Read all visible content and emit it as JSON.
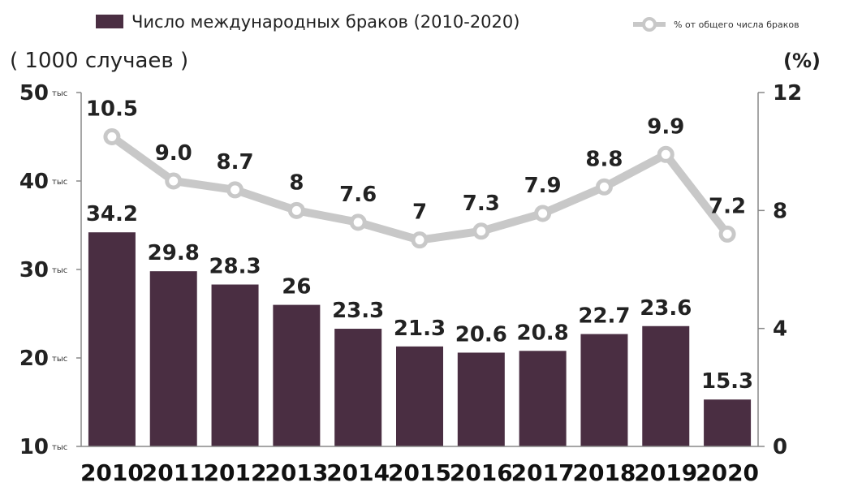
{
  "chart_data": {
    "type": "bar",
    "categories": [
      "2010",
      "2011",
      "2012",
      "2013",
      "2014",
      "2015",
      "2016",
      "2017",
      "2018",
      "2019",
      "2020"
    ],
    "series": [
      {
        "name": "Число международных браков (2010-2020)",
        "type": "bar",
        "axis": "left",
        "values": [
          34.2,
          29.8,
          28.3,
          26,
          23.3,
          21.3,
          20.6,
          20.8,
          22.7,
          23.6,
          15.3
        ],
        "labels": [
          "34.2",
          "29.8",
          "28.3",
          "26",
          "23.3",
          "21.3",
          "20.6",
          "20.8",
          "22.7",
          "23.6",
          "15.3"
        ],
        "color": "#4a2e42"
      },
      {
        "name": "% от общего числа браков",
        "type": "line",
        "axis": "right",
        "values": [
          10.5,
          9.0,
          8.7,
          8,
          7.6,
          7,
          7.3,
          7.9,
          8.8,
          9.9,
          7.2
        ],
        "labels": [
          "10.5",
          "9.0",
          "8.7",
          "8",
          "7.6",
          "7",
          "7.3",
          "7.9",
          "8.8",
          "9.9",
          "7.2"
        ],
        "color": "#c8c8c8"
      }
    ],
    "y_left": {
      "unit": "( 1000 случаев )",
      "range": [
        10,
        50
      ],
      "ticks": [
        50,
        40,
        30,
        20,
        10
      ],
      "tick_labels": [
        "50",
        "40",
        "30",
        "20",
        "10"
      ],
      "tick_suffix": "тыс"
    },
    "y_right": {
      "unit": "(%)",
      "range": [
        0,
        12
      ],
      "ticks": [
        12,
        8,
        4,
        0
      ],
      "tick_labels": [
        "12",
        "8",
        "4",
        "0"
      ]
    },
    "grid": false,
    "legend": "top"
  }
}
